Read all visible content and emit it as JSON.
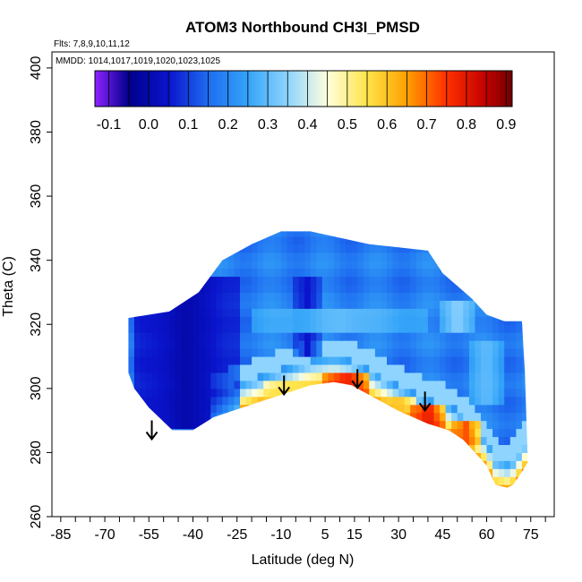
{
  "chart_data": {
    "type": "heatmap",
    "title": "ATOM3 Northbound CH3I_PMSD",
    "subtitle_flights": "Flts: 7,8,9,10,11,12",
    "subtitle_dates": "MMDD: 1014,1017,1019,1020,1023,1025",
    "xlabel": "Latitude (deg N)",
    "ylabel": "Theta (C)",
    "xlim": [
      -88,
      83
    ],
    "ylim": [
      260,
      405
    ],
    "xticks": [
      "-85",
      "-70",
      "-55",
      "-40",
      "-25",
      "-10",
      "5",
      "15",
      "30",
      "45",
      "60",
      "75"
    ],
    "xtick_values": [
      -85,
      -70,
      -55,
      -40,
      -25,
      -10,
      5,
      15,
      30,
      45,
      60,
      75
    ],
    "yticks": [
      260,
      280,
      300,
      320,
      340,
      360,
      380,
      400
    ],
    "colorbar": {
      "ticks": [
        "-0.1",
        "0.0",
        "0.1",
        "0.2",
        "0.3",
        "0.4",
        "0.5",
        "0.6",
        "0.7",
        "0.8",
        "0.9"
      ],
      "range": [
        -0.135,
        0.915
      ],
      "colors": [
        "#8f22ff",
        "#00008b",
        "#0a14cc",
        "#1e6cf0",
        "#34a4f8",
        "#8ed4ff",
        "#ffffdd",
        "#ffe44a",
        "#ffa000",
        "#ff3000",
        "#c00000",
        "#700000"
      ],
      "color_stops": [
        -0.135,
        -0.05,
        0.05,
        0.15,
        0.25,
        0.35,
        0.45,
        0.55,
        0.65,
        0.75,
        0.85,
        0.915
      ]
    },
    "boundary_top": [
      [
        -62,
        322
      ],
      [
        -48,
        324
      ],
      [
        -38,
        330
      ],
      [
        -30,
        340
      ],
      [
        -20,
        345
      ],
      [
        -10,
        349
      ],
      [
        0,
        349
      ],
      [
        10,
        347
      ],
      [
        20,
        345
      ],
      [
        30,
        344
      ],
      [
        40,
        343
      ],
      [
        45,
        336
      ],
      [
        50,
        332
      ],
      [
        55,
        328
      ],
      [
        60,
        323
      ],
      [
        66,
        321
      ],
      [
        72,
        321
      ],
      [
        73,
        305
      ]
    ],
    "boundary_bottom": [
      [
        -62,
        305
      ],
      [
        -60,
        300
      ],
      [
        -55,
        294
      ],
      [
        -47,
        287
      ],
      [
        -40,
        287
      ],
      [
        -33,
        291
      ],
      [
        -20,
        295
      ],
      [
        -10,
        298
      ],
      [
        0,
        301
      ],
      [
        8,
        302
      ],
      [
        14,
        301
      ],
      [
        20,
        298
      ],
      [
        30,
        293
      ],
      [
        40,
        289
      ],
      [
        47,
        287
      ],
      [
        52,
        284
      ],
      [
        56,
        280
      ],
      [
        60,
        276
      ],
      [
        63,
        270
      ],
      [
        67,
        269
      ],
      [
        69,
        270
      ],
      [
        72,
        274
      ],
      [
        74,
        277
      ]
    ],
    "regions": [
      {
        "lat": [
          -60,
          -25
        ],
        "theta": [
          288,
          335
        ],
        "value": 0.0
      },
      {
        "lat": [
          -5,
          3
        ],
        "theta": [
          310,
          335
        ],
        "value": 0.05
      },
      {
        "lat": [
          -20,
          40
        ],
        "theta": [
          318,
          326
        ],
        "value": 0.3
      },
      {
        "lat": [
          -15,
          5
        ],
        "theta": [
          295,
          302
        ],
        "value": 0.55
      },
      {
        "lat": [
          5,
          20
        ],
        "theta": [
          298,
          306
        ],
        "value": 0.78
      },
      {
        "lat": [
          25,
          35
        ],
        "theta": [
          292,
          298
        ],
        "value": 0.6
      },
      {
        "lat": [
          35,
          45
        ],
        "theta": [
          288,
          294
        ],
        "value": 0.8
      },
      {
        "lat": [
          48,
          58
        ],
        "theta": [
          282,
          290
        ],
        "value": 0.72
      },
      {
        "lat": [
          45,
          55
        ],
        "theta": [
          318,
          328
        ],
        "value": 0.35
      },
      {
        "lat": [
          55,
          65
        ],
        "theta": [
          295,
          315
        ],
        "value": 0.3
      }
    ],
    "arrows": [
      {
        "lat": -54,
        "theta": 285
      },
      {
        "lat": -9,
        "theta": 299
      },
      {
        "lat": 16,
        "theta": 301
      },
      {
        "lat": 39,
        "theta": 294
      }
    ]
  }
}
